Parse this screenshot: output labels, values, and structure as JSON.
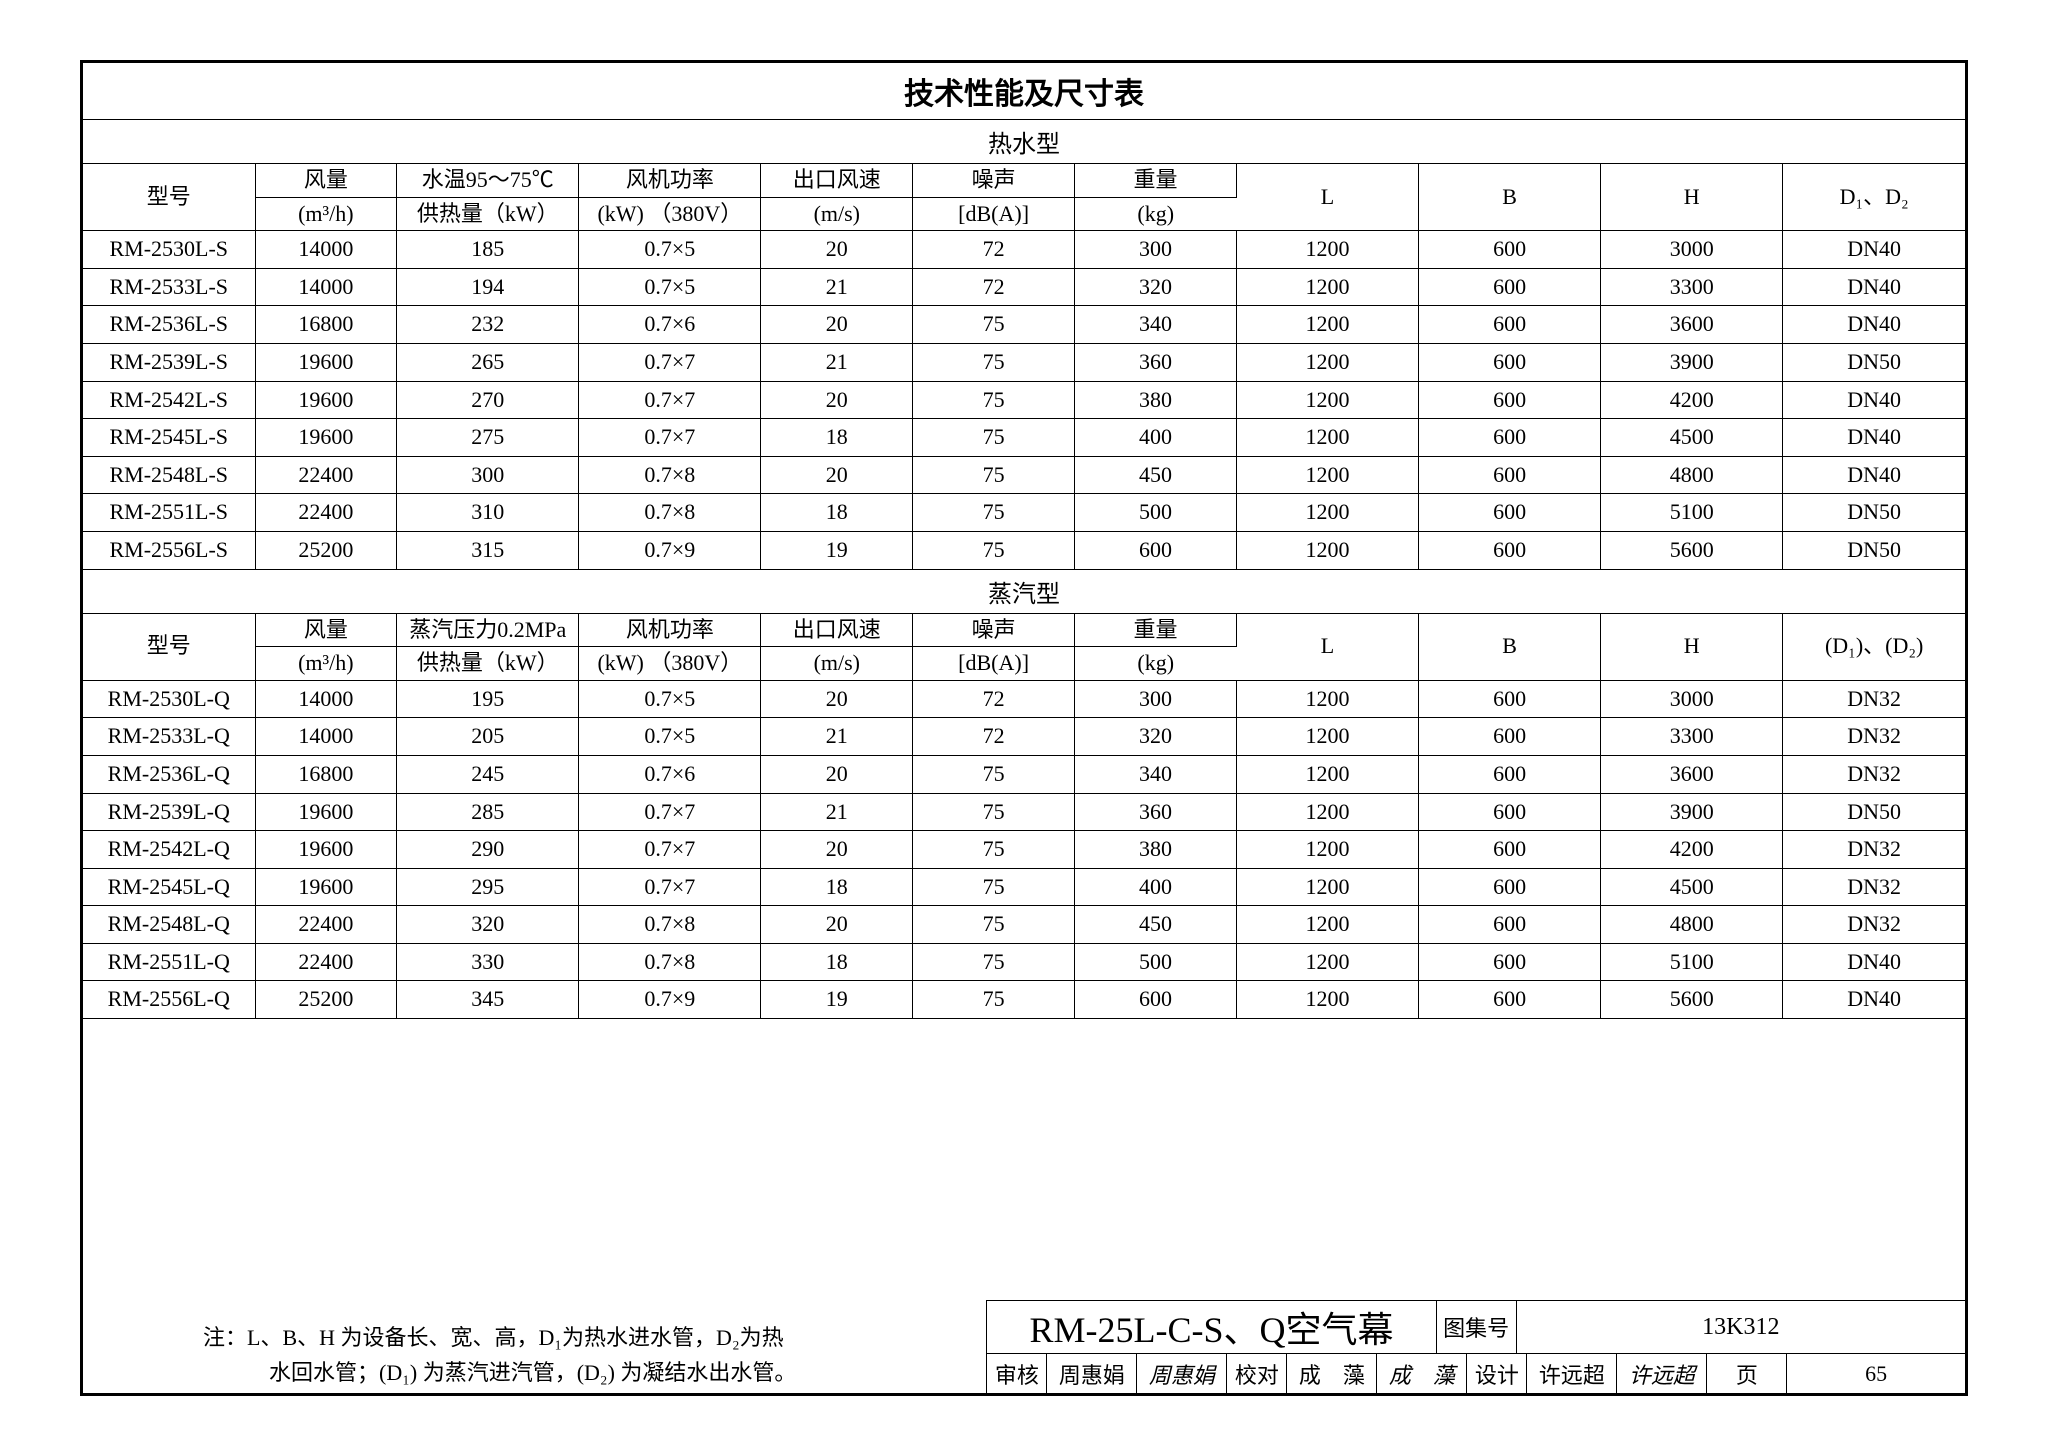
{
  "title": "技术性能及尺寸表",
  "section1_title": "热水型",
  "section2_title": "蒸汽型",
  "headers1": {
    "c0_l1": "型号",
    "c0_l2": "",
    "c1_l1": "风量",
    "c1_l2": "(m³/h)",
    "c2_l1": "水温95～75℃",
    "c2_l2": "供热量（kW）",
    "c3_l1": "风机功率",
    "c3_l2": "(kW) （380V）",
    "c4_l1": "出口风速",
    "c4_l2": "(m/s)",
    "c5_l1": "噪声",
    "c5_l2": "[dB(A)]",
    "c6_l1": "重量",
    "c6_l2": "(kg)",
    "c7": "L",
    "c8": "B",
    "c9": "H",
    "c10": "D₁、D₂"
  },
  "headers2": {
    "c0_l1": "型号",
    "c0_l2": "",
    "c1_l1": "风量",
    "c1_l2": "(m³/h)",
    "c2_l1": "蒸汽压力0.2MPa",
    "c2_l2": "供热量（kW）",
    "c3_l1": "风机功率",
    "c3_l2": "(kW) （380V）",
    "c4_l1": "出口风速",
    "c4_l2": "(m/s)",
    "c5_l1": "噪声",
    "c5_l2": "[dB(A)]",
    "c6_l1": "重量",
    "c6_l2": "(kg)",
    "c7": "L",
    "c8": "B",
    "c9": "H",
    "c10": "(D₁)、(D₂)"
  },
  "rows1": [
    [
      "RM-2530L-S",
      "14000",
      "185",
      "0.7×5",
      "20",
      "72",
      "300",
      "1200",
      "600",
      "3000",
      "DN40"
    ],
    [
      "RM-2533L-S",
      "14000",
      "194",
      "0.7×5",
      "21",
      "72",
      "320",
      "1200",
      "600",
      "3300",
      "DN40"
    ],
    [
      "RM-2536L-S",
      "16800",
      "232",
      "0.7×6",
      "20",
      "75",
      "340",
      "1200",
      "600",
      "3600",
      "DN40"
    ],
    [
      "RM-2539L-S",
      "19600",
      "265",
      "0.7×7",
      "21",
      "75",
      "360",
      "1200",
      "600",
      "3900",
      "DN50"
    ],
    [
      "RM-2542L-S",
      "19600",
      "270",
      "0.7×7",
      "20",
      "75",
      "380",
      "1200",
      "600",
      "4200",
      "DN40"
    ],
    [
      "RM-2545L-S",
      "19600",
      "275",
      "0.7×7",
      "18",
      "75",
      "400",
      "1200",
      "600",
      "4500",
      "DN40"
    ],
    [
      "RM-2548L-S",
      "22400",
      "300",
      "0.7×8",
      "20",
      "75",
      "450",
      "1200",
      "600",
      "4800",
      "DN40"
    ],
    [
      "RM-2551L-S",
      "22400",
      "310",
      "0.7×8",
      "18",
      "75",
      "500",
      "1200",
      "600",
      "5100",
      "DN50"
    ],
    [
      "RM-2556L-S",
      "25200",
      "315",
      "0.7×9",
      "19",
      "75",
      "600",
      "1200",
      "600",
      "5600",
      "DN50"
    ]
  ],
  "rows2": [
    [
      "RM-2530L-Q",
      "14000",
      "195",
      "0.7×5",
      "20",
      "72",
      "300",
      "1200",
      "600",
      "3000",
      "DN32"
    ],
    [
      "RM-2533L-Q",
      "14000",
      "205",
      "0.7×5",
      "21",
      "72",
      "320",
      "1200",
      "600",
      "3300",
      "DN32"
    ],
    [
      "RM-2536L-Q",
      "16800",
      "245",
      "0.7×6",
      "20",
      "75",
      "340",
      "1200",
      "600",
      "3600",
      "DN32"
    ],
    [
      "RM-2539L-Q",
      "19600",
      "285",
      "0.7×7",
      "21",
      "75",
      "360",
      "1200",
      "600",
      "3900",
      "DN50"
    ],
    [
      "RM-2542L-Q",
      "19600",
      "290",
      "0.7×7",
      "20",
      "75",
      "380",
      "1200",
      "600",
      "4200",
      "DN32"
    ],
    [
      "RM-2545L-Q",
      "19600",
      "295",
      "0.7×7",
      "18",
      "75",
      "400",
      "1200",
      "600",
      "4500",
      "DN32"
    ],
    [
      "RM-2548L-Q",
      "22400",
      "320",
      "0.7×8",
      "20",
      "75",
      "450",
      "1200",
      "600",
      "4800",
      "DN32"
    ],
    [
      "RM-2551L-Q",
      "22400",
      "330",
      "0.7×8",
      "18",
      "75",
      "500",
      "1200",
      "600",
      "5100",
      "DN40"
    ],
    [
      "RM-2556L-Q",
      "25200",
      "345",
      "0.7×9",
      "19",
      "75",
      "600",
      "1200",
      "600",
      "5600",
      "DN40"
    ]
  ],
  "note_l1": "注：L、B、H 为设备长、宽、高，D₁为热水进水管，D₂为热",
  "note_l2": "水回水管；(D₁) 为蒸汽进汽管，(D₂) 为凝结水出水管。",
  "titleblock": {
    "product_title": "RM-25L-C-S、Q空气幕",
    "atlas_label": "图集号",
    "atlas_value": "13K312",
    "review_label": "审核",
    "review_name": "周惠娟",
    "review_sig": "周惠娟",
    "check_label": "校对",
    "check_name": "成　藻",
    "check_sig": "成　藻",
    "design_label": "设计",
    "design_name": "许远超",
    "design_sig": "许远超",
    "page_label": "页",
    "page_value": "65"
  },
  "col_widths_pct": [
    8.5,
    7,
    9,
    9,
    7.5,
    8,
    8,
    9,
    9,
    9,
    9
  ],
  "colors": {
    "border": "#000000",
    "bg": "#ffffff",
    "text": "#000000"
  }
}
